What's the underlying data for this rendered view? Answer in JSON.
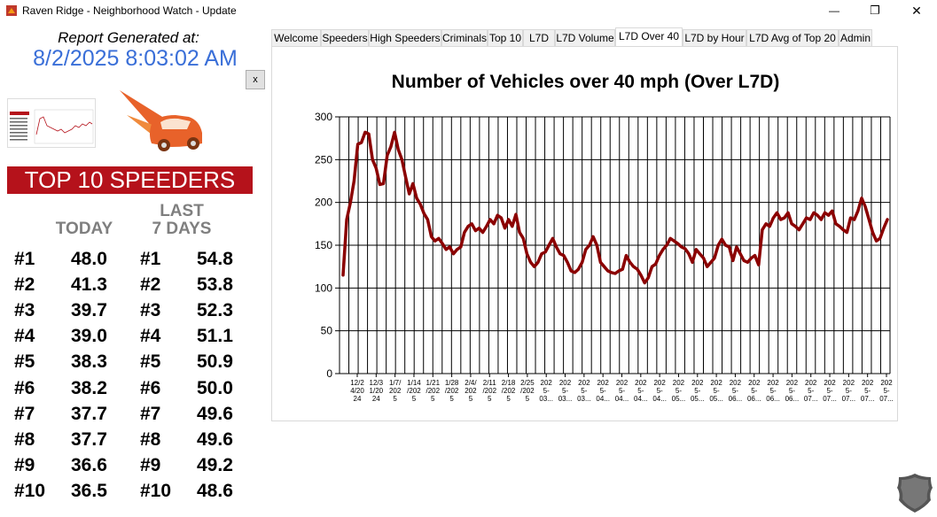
{
  "window": {
    "title": "Raven Ridge - Neighborhood Watch - Update",
    "minimize_glyph": "—",
    "maximize_glyph": "❐",
    "close_glyph": "✕"
  },
  "report": {
    "label": "Report Generated at:",
    "datetime": "8/2/2025 8:03:02 AM",
    "close_label": "x"
  },
  "top10": {
    "banner": "TOP 10 SPEEDERS",
    "today_label": "TODAY",
    "last7_label_1": "LAST",
    "last7_label_2": "7 DAYS",
    "rows": [
      {
        "rank": "#1",
        "today": "48.0",
        "rank7": "#1",
        "last7": "54.8"
      },
      {
        "rank": "#2",
        "today": "41.3",
        "rank7": "#2",
        "last7": "53.8"
      },
      {
        "rank": "#3",
        "today": "39.7",
        "rank7": "#3",
        "last7": "52.3"
      },
      {
        "rank": "#4",
        "today": "39.0",
        "rank7": "#4",
        "last7": "51.1"
      },
      {
        "rank": "#5",
        "today": "38.3",
        "rank7": "#5",
        "last7": "50.9"
      },
      {
        "rank": "#6",
        "today": "38.2",
        "rank7": "#6",
        "last7": "50.0"
      },
      {
        "rank": "#7",
        "today": "37.7",
        "rank7": "#7",
        "last7": "49.6"
      },
      {
        "rank": "#8",
        "today": "37.7",
        "rank7": "#8",
        "last7": "49.6"
      },
      {
        "rank": "#9",
        "today": "36.6",
        "rank7": "#9",
        "last7": "49.2"
      },
      {
        "rank": "#10",
        "today": "36.5",
        "rank7": "#10",
        "last7": "48.6"
      }
    ]
  },
  "tabs": [
    {
      "label": "Welcome",
      "active": false
    },
    {
      "label": "Speeders",
      "active": false
    },
    {
      "label": "High Speeders",
      "active": false
    },
    {
      "label": "Criminals",
      "active": false
    },
    {
      "label": "Top 10",
      "active": false
    },
    {
      "label": "L7D",
      "active": false
    },
    {
      "label": "L7D Volume",
      "active": false
    },
    {
      "label": "L7D Over 40",
      "active": true
    },
    {
      "label": "L7D by Hour",
      "active": false
    },
    {
      "label": "L7D Avg of Top 20",
      "active": false
    },
    {
      "label": "Admin",
      "active": false
    }
  ],
  "colors": {
    "accent_blue": "#3a6fd8",
    "banner_red": "#b5121b",
    "line": "#8b0000"
  },
  "chart_data": {
    "type": "line",
    "title": "Number of Vehicles over 40 mph (Over L7D)",
    "xlabel": "",
    "ylabel": "",
    "ylim": [
      0,
      300
    ],
    "yticks": [
      0,
      50,
      100,
      150,
      200,
      250,
      300
    ],
    "grid": true,
    "x_labels": [
      [
        "12/2",
        "4/20",
        "24"
      ],
      [
        "12/3",
        "1/20",
        "24"
      ],
      [
        "1/7/",
        "202",
        "5"
      ],
      [
        "1/14",
        "/202",
        "5"
      ],
      [
        "1/21",
        "/202",
        "5"
      ],
      [
        "1/28",
        "/202",
        "5"
      ],
      [
        "2/4/",
        "202",
        "5"
      ],
      [
        "2/11",
        "/202",
        "5"
      ],
      [
        "2/18",
        "/202",
        "5"
      ],
      [
        "2/25",
        "/202",
        "5"
      ],
      [
        "202",
        "5-",
        "03..."
      ],
      [
        "202",
        "5-",
        "03..."
      ],
      [
        "202",
        "5-",
        "03..."
      ],
      [
        "202",
        "5-",
        "04..."
      ],
      [
        "202",
        "5-",
        "04..."
      ],
      [
        "202",
        "5-",
        "04..."
      ],
      [
        "202",
        "5-",
        "04..."
      ],
      [
        "202",
        "5-",
        "05..."
      ],
      [
        "202",
        "5-",
        "05..."
      ],
      [
        "202",
        "5-",
        "05..."
      ],
      [
        "202",
        "5-",
        "06..."
      ],
      [
        "202",
        "5-",
        "06..."
      ],
      [
        "202",
        "5-",
        "06..."
      ],
      [
        "202",
        "5-",
        "06..."
      ],
      [
        "202",
        "5-",
        "07..."
      ],
      [
        "202",
        "5-",
        "07..."
      ],
      [
        "202",
        "5-",
        "07..."
      ],
      [
        "202",
        "5-",
        "07..."
      ],
      [
        "202",
        "5-",
        "07..."
      ]
    ],
    "series": [
      {
        "values": [
          115,
          180,
          200,
          225,
          268,
          270,
          282,
          280,
          250,
          240,
          221,
          222,
          255,
          265,
          282,
          262,
          250,
          230,
          210,
          222,
          205,
          198,
          187,
          180,
          160,
          155,
          158,
          152,
          145,
          148,
          140,
          145,
          148,
          165,
          172,
          175,
          167,
          170,
          165,
          172,
          180,
          175,
          185,
          182,
          170,
          180,
          172,
          186,
          165,
          158,
          140,
          130,
          125,
          130,
          140,
          142,
          150,
          158,
          148,
          140,
          138,
          130,
          120,
          118,
          122,
          130,
          145,
          150,
          160,
          150,
          130,
          125,
          120,
          118,
          117,
          120,
          122,
          138,
          130,
          125,
          122,
          115,
          106,
          112,
          125,
          128,
          138,
          145,
          150,
          158,
          155,
          152,
          148,
          146,
          140,
          130,
          145,
          140,
          135,
          125,
          130,
          135,
          150,
          157,
          150,
          148,
          132,
          148,
          140,
          132,
          130,
          135,
          138,
          127,
          168,
          175,
          172,
          182,
          188,
          180,
          182,
          188,
          175,
          172,
          168,
          175,
          182,
          180,
          188,
          185,
          180,
          188,
          185,
          190,
          175,
          172,
          168,
          165,
          182,
          180,
          190,
          205,
          195,
          180,
          165,
          155,
          158,
          170,
          180
        ]
      }
    ]
  }
}
